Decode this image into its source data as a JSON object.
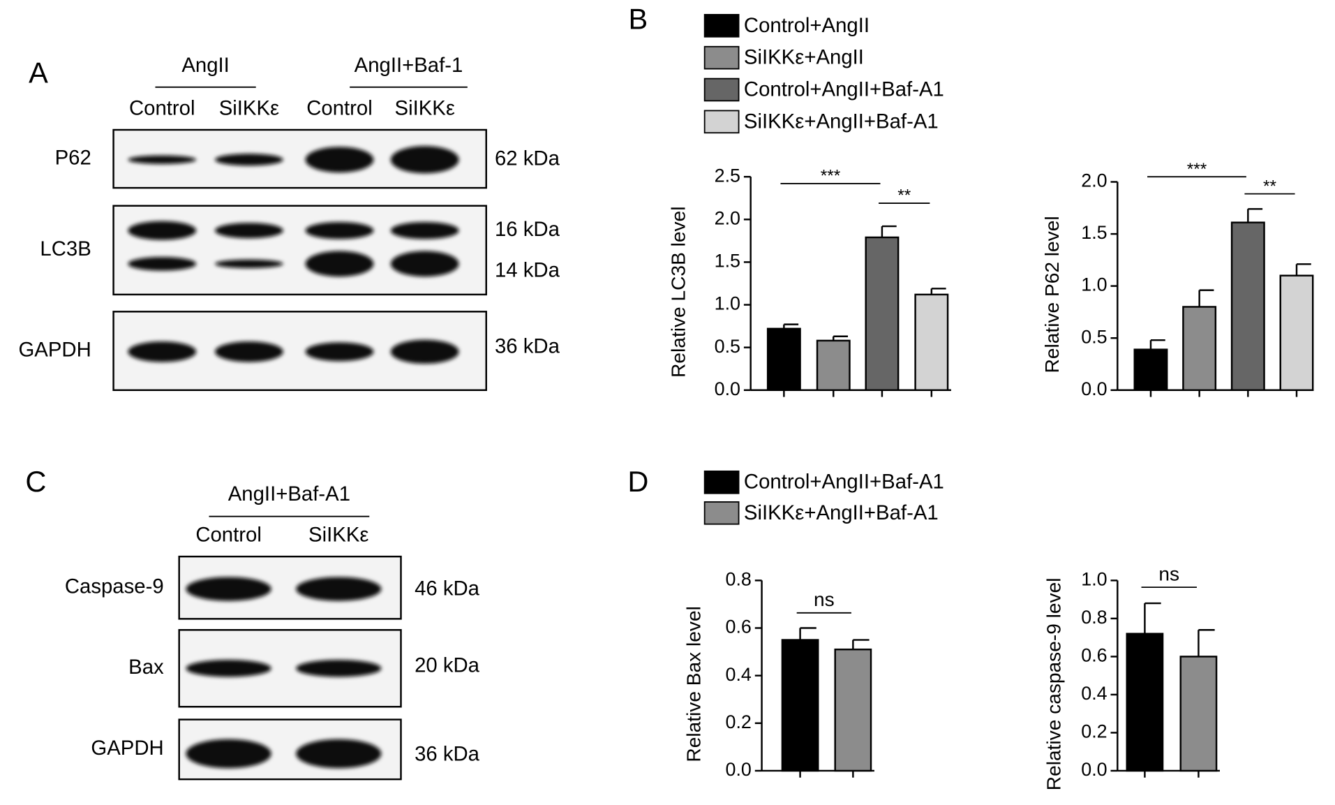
{
  "panel_labels": [
    "A",
    "B",
    "C",
    "D"
  ],
  "blots": [
    {
      "groups": [
        "AngII",
        "AngII+Baf-1"
      ],
      "lanes": [
        "Control",
        "SiIKKε",
        "Control",
        "SiIKKε"
      ],
      "rows": [
        {
          "name": "P62",
          "sizes": [
            "62 kDa"
          ]
        },
        {
          "name": "LC3B",
          "sizes": [
            "16 kDa",
            "14 kDa"
          ]
        },
        {
          "name": "GAPDH",
          "sizes": [
            "36 kDa"
          ]
        }
      ]
    },
    {
      "groups": [
        "AngII+Baf-A1"
      ],
      "lanes": [
        "Control",
        "SiIKKε"
      ],
      "rows": [
        {
          "name": "Caspase-9",
          "sizes": [
            "46 kDa"
          ]
        },
        {
          "name": "Bax",
          "sizes": [
            "20 kDa"
          ]
        },
        {
          "name": "GAPDH",
          "sizes": [
            "36 kDa"
          ]
        }
      ]
    }
  ],
  "chart_data": [
    {
      "type": "bar",
      "ylabel": "Relative LC3B level",
      "ylim": [
        0,
        2.5
      ],
      "yticks": [
        {
          "value": 0,
          "label": "0.0"
        },
        0.5,
        {
          "value": 1,
          "label": "1.0"
        },
        1.5,
        {
          "value": 2,
          "label": "2.0"
        },
        2.5
      ],
      "series": [
        {
          "name": "Control+AngII",
          "color": "#000000",
          "values": [
            0.72
          ],
          "errors": [
            0.05
          ]
        },
        {
          "name": "SiIKKε+AngII",
          "color": "#8c8c8c",
          "values": [
            0.58
          ],
          "errors": [
            0.05
          ]
        },
        {
          "name": "Control+AngII+Baf-A1",
          "color": "#666666",
          "values": [
            1.79
          ],
          "errors": [
            0.13
          ]
        },
        {
          "name": "SiIKKε+AngII+Baf-A1",
          "color": "#d3d3d3",
          "values": [
            1.12
          ],
          "errors": [
            0.07
          ]
        }
      ],
      "annotations": [
        {
          "from": 0,
          "to": 2,
          "label": "***"
        },
        {
          "from": 2,
          "to": 3,
          "label": "**"
        }
      ]
    },
    {
      "type": "bar",
      "ylabel": "Relative P62 level",
      "ylim": [
        0,
        2
      ],
      "yticks": [
        {
          "value": 0,
          "label": "0.0"
        },
        0.5,
        {
          "value": 1,
          "label": "1.0"
        },
        1.5,
        {
          "value": 2,
          "label": "2.0"
        }
      ],
      "series": [
        {
          "color": "#000000",
          "values": [
            0.39
          ],
          "errors": [
            0.09
          ]
        },
        {
          "color": "#8c8c8c",
          "values": [
            0.8
          ],
          "errors": [
            0.16
          ]
        },
        {
          "color": "#666666",
          "values": [
            1.61
          ],
          "errors": [
            0.13
          ]
        },
        {
          "color": "#d3d3d3",
          "values": [
            1.1
          ],
          "errors": [
            0.11
          ]
        }
      ],
      "annotations": [
        {
          "from": 0,
          "to": 2,
          "label": "***"
        },
        {
          "from": 2,
          "to": 3,
          "label": "**"
        }
      ]
    },
    {
      "type": "bar",
      "ylabel": "Relative Bax level",
      "ylim": [
        0,
        0.8
      ],
      "yticks": [
        {
          "value": 0,
          "label": "0.0"
        },
        0.2,
        0.4,
        0.6,
        0.8
      ],
      "series": [
        {
          "name": "Control+AngII+Baf-A1",
          "color": "#000000",
          "values": [
            0.55
          ],
          "errors": [
            0.05
          ]
        },
        {
          "name": "SiIKKε+AngII+Baf-A1",
          "color": "#8c8c8c",
          "values": [
            0.51
          ],
          "errors": [
            0.04
          ]
        }
      ],
      "annotations": [
        {
          "from": 0,
          "to": 1,
          "label": "ns"
        }
      ]
    },
    {
      "type": "bar",
      "ylabel": "Relative caspase-9 level",
      "ylim": [
        0,
        1
      ],
      "yticks": [
        {
          "value": 0,
          "label": "0.0"
        },
        0.2,
        0.4,
        0.6,
        0.8,
        {
          "value": 1,
          "label": "1.0"
        }
      ],
      "series": [
        {
          "color": "#000000",
          "values": [
            0.72
          ],
          "errors": [
            0.16
          ]
        },
        {
          "color": "#8c8c8c",
          "values": [
            0.6
          ],
          "errors": [
            0.14
          ]
        }
      ],
      "annotations": [
        {
          "from": 0,
          "to": 1,
          "label": "ns"
        }
      ]
    }
  ]
}
